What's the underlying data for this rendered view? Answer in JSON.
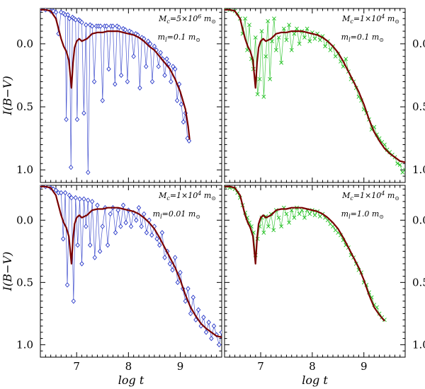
{
  "chart_data": [
    {
      "type": "line",
      "panel": "top-left",
      "annotation_line1": "M_c=5×10^6 m_⊙",
      "annotation_line2": "m_l=0.1 m_⊙",
      "ylabel": "I(B−V)",
      "xlabel": "",
      "xlim": [
        6.3,
        9.8
      ],
      "ylim_inverted": [
        -0.28,
        1.1
      ],
      "xticks": [
        "7",
        "8",
        "9"
      ],
      "yticks": [
        "0.0",
        "0.5",
        "1.0"
      ],
      "series": [
        {
          "name": "simulation",
          "marker": "diamond",
          "color": "#2838c8",
          "x": [
            6.3,
            6.4,
            6.5,
            6.55,
            6.6,
            6.65,
            6.7,
            6.75,
            6.78,
            6.8,
            6.83,
            6.86,
            6.89,
            6.92,
            6.95,
            6.98,
            7.01,
            7.04,
            7.07,
            7.1,
            7.14,
            7.18,
            7.22,
            7.26,
            7.3,
            7.34,
            7.38,
            7.42,
            7.46,
            7.5,
            7.54,
            7.58,
            7.62,
            7.66,
            7.7,
            7.74,
            7.78,
            7.82,
            7.86,
            7.9,
            7.94,
            7.98,
            8.02,
            8.06,
            8.1,
            8.14,
            8.18,
            8.22,
            8.26,
            8.3,
            8.34,
            8.38,
            8.42,
            8.46,
            8.5,
            8.54,
            8.58,
            8.62,
            8.66,
            8.7,
            8.74,
            8.78,
            8.82,
            8.86,
            8.9,
            8.94,
            8.98,
            9.02,
            9.06,
            9.1,
            9.14,
            9.17
          ],
          "y": [
            -0.27,
            -0.27,
            -0.26,
            -0.26,
            -0.25,
            -0.08,
            -0.25,
            -0.24,
            -0.23,
            0.6,
            -0.23,
            -0.2,
            0.98,
            -0.21,
            -0.2,
            -0.19,
            0.6,
            -0.19,
            -0.18,
            -0.17,
            0.55,
            -0.15,
            1.02,
            -0.15,
            -0.14,
            0.3,
            -0.14,
            -0.14,
            -0.14,
            0.45,
            -0.14,
            -0.14,
            0.2,
            -0.14,
            -0.14,
            0.32,
            -0.14,
            -0.13,
            0.25,
            -0.12,
            -0.11,
            0.3,
            -0.1,
            -0.09,
            0.1,
            -0.08,
            -0.07,
            0.35,
            -0.05,
            -0.04,
            0.18,
            -0.02,
            0.0,
            0.3,
            0.02,
            0.05,
            0.18,
            0.07,
            0.12,
            0.25,
            0.12,
            0.16,
            0.3,
            0.18,
            0.2,
            0.45,
            0.32,
            0.48,
            0.62,
            0.55,
            0.75,
            0.77
          ]
        },
        {
          "name": "smooth model",
          "marker": "none",
          "color": "#7a0000",
          "x": [
            6.3,
            6.4,
            6.5,
            6.6,
            6.65,
            6.7,
            6.75,
            6.8,
            6.85,
            6.9,
            6.93,
            6.96,
            7.0,
            7.05,
            7.1,
            7.2,
            7.3,
            7.4,
            7.5,
            7.6,
            7.7,
            7.8,
            7.9,
            8.0,
            8.1,
            8.2,
            8.3,
            8.4,
            8.5,
            8.6,
            8.7,
            8.8,
            8.9,
            9.0,
            9.1,
            9.15,
            9.18
          ],
          "y": [
            -0.27,
            -0.27,
            -0.26,
            -0.2,
            -0.12,
            -0.04,
            0.02,
            0.06,
            0.13,
            0.35,
            0.15,
            0.03,
            -0.02,
            -0.04,
            -0.02,
            -0.04,
            -0.08,
            -0.09,
            -0.09,
            -0.1,
            -0.1,
            -0.1,
            -0.09,
            -0.08,
            -0.07,
            -0.05,
            -0.02,
            0.02,
            0.05,
            0.1,
            0.15,
            0.2,
            0.28,
            0.38,
            0.52,
            0.65,
            0.76
          ]
        }
      ]
    },
    {
      "type": "line",
      "panel": "top-right",
      "annotation_line1": "M_c=1×10^4 m_⊙",
      "annotation_line2": "m_l=0.1 m_⊙",
      "ylabel": "",
      "xlabel": "",
      "xlim": [
        6.3,
        9.8
      ],
      "ylim_inverted": [
        -0.28,
        1.1
      ],
      "xticks": [
        "7",
        "8",
        "9"
      ],
      "yticks": [
        "0.0",
        "0.5",
        "1.0"
      ],
      "series": [
        {
          "name": "simulation",
          "marker": "x",
          "color": "#20c020",
          "x": [
            6.3,
            6.4,
            6.5,
            6.55,
            6.6,
            6.65,
            6.7,
            6.74,
            6.78,
            6.82,
            6.86,
            6.9,
            6.94,
            6.98,
            7.02,
            7.06,
            7.1,
            7.14,
            7.18,
            7.22,
            7.26,
            7.3,
            7.35,
            7.4,
            7.45,
            7.5,
            7.55,
            7.6,
            7.65,
            7.7,
            7.75,
            7.8,
            7.85,
            7.9,
            7.95,
            8.0,
            8.05,
            8.1,
            8.15,
            8.2,
            8.25,
            8.3,
            8.35,
            8.4,
            8.45,
            8.5,
            8.55,
            8.6,
            8.65,
            8.7,
            8.75,
            8.8,
            8.85,
            8.9,
            8.95,
            9.0,
            9.05,
            9.1,
            9.15,
            9.2,
            9.25,
            9.3,
            9.35,
            9.4,
            9.45,
            9.5,
            9.55,
            9.6,
            9.65,
            9.7,
            9.75,
            9.8
          ],
          "y": [
            -0.28,
            -0.27,
            -0.26,
            -0.24,
            -0.2,
            -0.08,
            -0.2,
            0.05,
            -0.15,
            0.12,
            0.2,
            -0.05,
            0.4,
            0.28,
            -0.1,
            0.42,
            0.1,
            -0.18,
            0.28,
            -0.02,
            -0.2,
            0.05,
            -0.05,
            0.15,
            -0.12,
            -0.03,
            -0.15,
            0.05,
            -0.08,
            -0.12,
            0.0,
            -0.1,
            -0.05,
            -0.12,
            -0.02,
            -0.09,
            -0.04,
            -0.08,
            -0.03,
            -0.06,
            0.02,
            -0.02,
            0.05,
            0.02,
            0.1,
            0.08,
            0.14,
            0.18,
            0.12,
            0.22,
            0.28,
            0.3,
            0.35,
            0.42,
            0.45,
            0.52,
            0.55,
            0.6,
            0.68,
            0.66,
            0.72,
            0.75,
            0.78,
            0.8,
            0.84,
            0.86,
            0.88,
            0.9,
            0.95,
            0.96,
            1.02,
            1.0
          ]
        },
        {
          "name": "smooth model",
          "marker": "none",
          "color": "#7a0000",
          "x": [
            6.3,
            6.4,
            6.5,
            6.6,
            6.65,
            6.7,
            6.75,
            6.8,
            6.85,
            6.9,
            6.93,
            6.96,
            7.0,
            7.05,
            7.1,
            7.2,
            7.3,
            7.4,
            7.5,
            7.6,
            7.7,
            7.8,
            7.9,
            8.0,
            8.1,
            8.2,
            8.3,
            8.4,
            8.5,
            8.6,
            8.7,
            8.8,
            8.9,
            9.0,
            9.1,
            9.2,
            9.3,
            9.4,
            9.5,
            9.6,
            9.7,
            9.8
          ],
          "y": [
            -0.27,
            -0.27,
            -0.26,
            -0.2,
            -0.12,
            -0.04,
            0.02,
            0.06,
            0.13,
            0.35,
            0.15,
            0.03,
            -0.02,
            -0.04,
            -0.02,
            -0.04,
            -0.08,
            -0.09,
            -0.09,
            -0.1,
            -0.1,
            -0.1,
            -0.09,
            -0.08,
            -0.07,
            -0.05,
            -0.02,
            0.02,
            0.07,
            0.14,
            0.22,
            0.3,
            0.38,
            0.48,
            0.6,
            0.7,
            0.77,
            0.83,
            0.87,
            0.9,
            0.93,
            0.94
          ]
        }
      ]
    },
    {
      "type": "line",
      "panel": "bottom-left",
      "annotation_line1": "M_c=1×10^4 m_⊙",
      "annotation_line2": "m_l=0.01 m_⊙",
      "ylabel": "I(B−V)",
      "xlabel": "log t",
      "xlim": [
        6.3,
        9.8
      ],
      "ylim_inverted": [
        -0.28,
        1.1
      ],
      "xticks": [
        "7",
        "8",
        "9"
      ],
      "yticks": [
        "0.0",
        "0.5",
        "1.0"
      ],
      "series": [
        {
          "name": "simulation",
          "marker": "diamond",
          "color": "#2838c8",
          "x": [
            6.3,
            6.4,
            6.5,
            6.55,
            6.6,
            6.65,
            6.7,
            6.74,
            6.78,
            6.82,
            6.86,
            6.9,
            6.94,
            6.98,
            7.02,
            7.06,
            7.1,
            7.14,
            7.18,
            7.22,
            7.26,
            7.3,
            7.35,
            7.4,
            7.45,
            7.5,
            7.55,
            7.6,
            7.65,
            7.7,
            7.75,
            7.8,
            7.85,
            7.9,
            7.95,
            8.0,
            8.05,
            8.1,
            8.15,
            8.2,
            8.25,
            8.3,
            8.35,
            8.4,
            8.45,
            8.5,
            8.55,
            8.6,
            8.65,
            8.7,
            8.75,
            8.8,
            8.85,
            8.9,
            8.95,
            9.0,
            9.05,
            9.1,
            9.15,
            9.2,
            9.25,
            9.3,
            9.35,
            9.4,
            9.45,
            9.5,
            9.55,
            9.6,
            9.65,
            9.7,
            9.75,
            9.8
          ],
          "y": [
            -0.27,
            -0.27,
            -0.26,
            -0.25,
            -0.24,
            -0.22,
            -0.22,
            0.15,
            -0.22,
            0.52,
            -0.2,
            -0.18,
            0.65,
            -0.18,
            0.2,
            -0.17,
            0.35,
            -0.17,
            0.05,
            -0.16,
            0.2,
            -0.15,
            0.3,
            -0.12,
            0.25,
            0.05,
            -0.1,
            0.2,
            -0.05,
            -0.1,
            0.1,
            -0.08,
            0.05,
            -0.12,
            0.02,
            -0.08,
            0.05,
            -0.06,
            0.0,
            -0.1,
            0.05,
            -0.05,
            0.1,
            0.0,
            0.12,
            0.05,
            0.15,
            0.2,
            0.1,
            0.3,
            0.25,
            0.35,
            0.4,
            0.3,
            0.5,
            0.42,
            0.55,
            0.65,
            0.55,
            0.75,
            0.62,
            0.8,
            0.72,
            0.85,
            0.78,
            0.9,
            0.82,
            0.95,
            0.85,
            0.92,
            1.0,
            0.9
          ]
        },
        {
          "name": "smooth model",
          "marker": "none",
          "color": "#7a0000",
          "x": [
            6.3,
            6.4,
            6.5,
            6.6,
            6.65,
            6.7,
            6.75,
            6.8,
            6.85,
            6.9,
            6.93,
            6.96,
            7.0,
            7.05,
            7.1,
            7.2,
            7.3,
            7.4,
            7.5,
            7.6,
            7.7,
            7.8,
            7.9,
            8.0,
            8.1,
            8.2,
            8.3,
            8.4,
            8.5,
            8.6,
            8.7,
            8.8,
            8.9,
            9.0,
            9.1,
            9.2,
            9.3,
            9.4,
            9.5,
            9.6,
            9.7,
            9.8
          ],
          "y": [
            -0.27,
            -0.27,
            -0.26,
            -0.2,
            -0.12,
            -0.04,
            0.02,
            0.06,
            0.13,
            0.35,
            0.15,
            0.03,
            -0.02,
            -0.04,
            -0.02,
            -0.04,
            -0.08,
            -0.09,
            -0.09,
            -0.1,
            -0.1,
            -0.1,
            -0.09,
            -0.08,
            -0.07,
            -0.05,
            -0.02,
            0.02,
            0.07,
            0.14,
            0.22,
            0.3,
            0.38,
            0.48,
            0.6,
            0.7,
            0.77,
            0.83,
            0.87,
            0.9,
            0.93,
            0.94
          ]
        }
      ]
    },
    {
      "type": "line",
      "panel": "bottom-right",
      "annotation_line1": "M_c=1×10^4 m_⊙",
      "annotation_line2": "m_l=1.0 m_⊙",
      "ylabel": "",
      "xlabel": "log t",
      "xlim": [
        6.3,
        9.8
      ],
      "ylim_inverted": [
        -0.28,
        1.1
      ],
      "xticks": [
        "7",
        "8",
        "9"
      ],
      "yticks": [
        "0.0",
        "0.5",
        "1.0"
      ],
      "series": [
        {
          "name": "simulation",
          "marker": "x",
          "color": "#20c020",
          "x": [
            6.3,
            6.4,
            6.5,
            6.55,
            6.6,
            6.65,
            6.7,
            6.74,
            6.78,
            6.82,
            6.86,
            6.9,
            6.94,
            6.98,
            7.02,
            7.06,
            7.1,
            7.15,
            7.2,
            7.25,
            7.3,
            7.35,
            7.4,
            7.45,
            7.5,
            7.55,
            7.6,
            7.65,
            7.7,
            7.75,
            7.8,
            7.85,
            7.9,
            7.95,
            8.0,
            8.05,
            8.1,
            8.15,
            8.2,
            8.25,
            8.3,
            8.35,
            8.4,
            8.45,
            8.5,
            8.55,
            8.6,
            8.65,
            8.7,
            8.75,
            8.8,
            8.85,
            8.9,
            8.95,
            9.0,
            9.05,
            9.1,
            9.15,
            9.2,
            9.25,
            9.3,
            9.35,
            9.4
          ],
          "y": [
            -0.27,
            -0.26,
            -0.25,
            -0.22,
            -0.18,
            -0.12,
            -0.06,
            -0.02,
            0.02,
            0.05,
            0.1,
            0.28,
            0.15,
            0.05,
            -0.02,
            0.1,
            -0.03,
            0.05,
            -0.05,
            0.08,
            -0.08,
            -0.02,
            0.05,
            -0.1,
            -0.05,
            0.02,
            -0.08,
            -0.02,
            -0.1,
            -0.05,
            -0.08,
            -0.02,
            -0.08,
            -0.05,
            -0.08,
            -0.04,
            -0.07,
            -0.03,
            -0.05,
            -0.02,
            0.0,
            0.03,
            0.05,
            0.08,
            0.1,
            0.12,
            0.16,
            0.2,
            0.22,
            0.28,
            0.3,
            0.35,
            0.4,
            0.42,
            0.5,
            0.52,
            0.58,
            0.62,
            0.68,
            0.7,
            0.75,
            0.78,
            0.8
          ]
        },
        {
          "name": "smooth model",
          "marker": "none",
          "color": "#7a0000",
          "x": [
            6.3,
            6.4,
            6.5,
            6.6,
            6.65,
            6.7,
            6.75,
            6.8,
            6.85,
            6.9,
            6.93,
            6.96,
            7.0,
            7.05,
            7.1,
            7.2,
            7.3,
            7.4,
            7.5,
            7.6,
            7.7,
            7.8,
            7.9,
            8.0,
            8.1,
            8.2,
            8.3,
            8.4,
            8.5,
            8.6,
            8.7,
            8.8,
            8.9,
            9.0,
            9.1,
            9.2,
            9.3,
            9.4
          ],
          "y": [
            -0.27,
            -0.27,
            -0.26,
            -0.2,
            -0.12,
            -0.04,
            0.02,
            0.06,
            0.13,
            0.35,
            0.15,
            0.03,
            -0.02,
            -0.04,
            -0.02,
            -0.04,
            -0.08,
            -0.09,
            -0.09,
            -0.1,
            -0.1,
            -0.1,
            -0.09,
            -0.08,
            -0.07,
            -0.05,
            -0.02,
            0.02,
            0.07,
            0.14,
            0.22,
            0.3,
            0.38,
            0.48,
            0.6,
            0.7,
            0.76,
            0.81
          ]
        }
      ]
    }
  ]
}
